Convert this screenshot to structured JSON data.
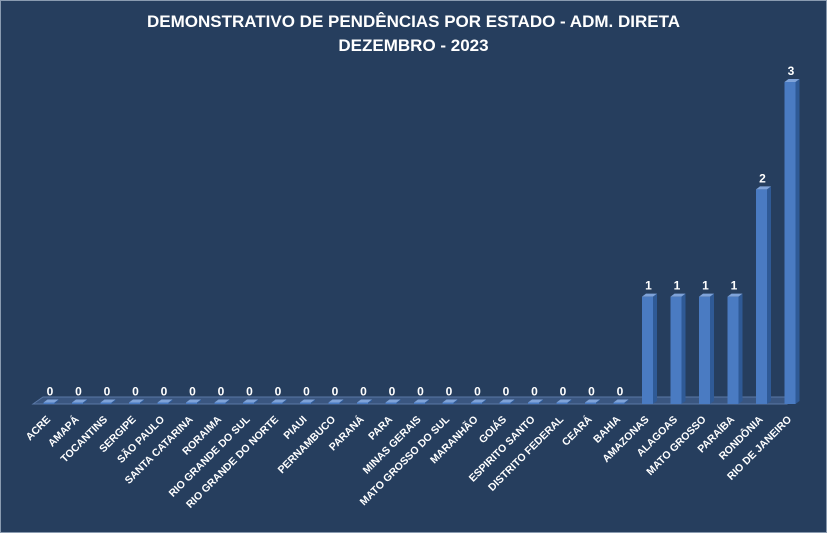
{
  "chart_data": {
    "type": "bar",
    "title": "DEMONSTRATIVO DE PENDÊNCIAS POR ESTADO - ADM. DIRETA",
    "subtitle": "DEZEMBRO - 2023",
    "categories": [
      "ACRE",
      "AMAPÁ",
      "TOCANTINS",
      "SERGIPE",
      "SÃO PAULO",
      "SANTA CATARINA",
      "RORAIMA",
      "RIO GRANDE DO SUL",
      "RIO GRANDE DO NORTE",
      "PIAUI",
      "PERNAMBUCO",
      "PARANÁ",
      "PARA",
      "MINAS GERAIS",
      "MATO GROSSO DO SUL",
      "MARANHÃO",
      "GOIÁS",
      "ESPIRITO SANTO",
      "DISTRITO FEDERAL",
      "CEARÁ",
      "BAHIA",
      "AMAZONAS",
      "ALAGOAS",
      "MATO GROSSO",
      "PARAÍBA",
      "RONDÔNIA",
      "RIO DE JANEIRO"
    ],
    "values": [
      0,
      0,
      0,
      0,
      0,
      0,
      0,
      0,
      0,
      0,
      0,
      0,
      0,
      0,
      0,
      0,
      0,
      0,
      0,
      0,
      0,
      1,
      1,
      1,
      1,
      2,
      3
    ],
    "xlabel": "",
    "ylabel": "",
    "ylim": [
      0,
      3
    ],
    "grid": false,
    "data_labels": true,
    "colors": {
      "background": "#263e5e",
      "bar_front": "#4a7bc2",
      "bar_side": "#2f5a96",
      "bar_top": "#7fa3d9",
      "text": "#ffffff"
    }
  }
}
